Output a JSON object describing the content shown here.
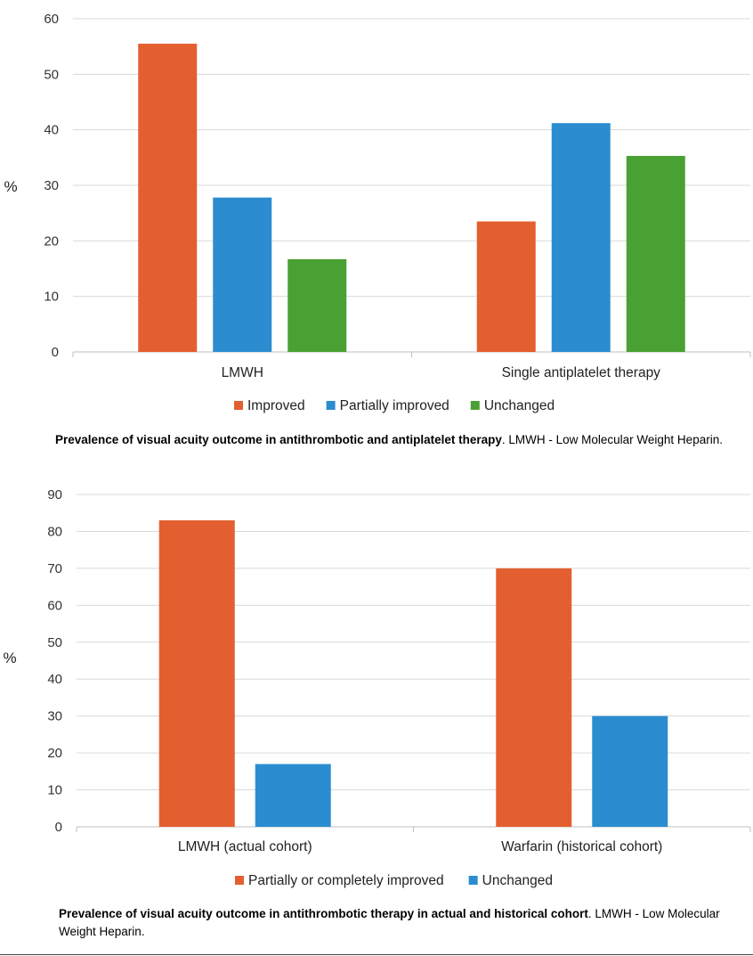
{
  "chart_data": [
    {
      "type": "bar",
      "categories": [
        "LMWH",
        "Single antiplatelet therapy"
      ],
      "series": [
        {
          "name": "Improved",
          "values": [
            55.5,
            23.5
          ],
          "color": "#E35F30"
        },
        {
          "name": "Partially improved",
          "values": [
            27.8,
            41.2
          ],
          "color": "#2B8DD0"
        },
        {
          "name": "Unchanged",
          "values": [
            16.7,
            35.3
          ],
          "color": "#4AA133"
        }
      ],
      "ylabel": "%",
      "ylim": [
        0,
        60
      ],
      "yticks": [
        0,
        10,
        20,
        30,
        40,
        50,
        60
      ],
      "grid": true,
      "legend_position": "bottom",
      "caption_bold": "Prevalence of visual acuity outcome in antithrombotic and antiplatelet therapy",
      "caption_rest": ". LMWH - Low Molecular Weight Heparin."
    },
    {
      "type": "bar",
      "categories": [
        "LMWH (actual cohort)",
        "Warfarin (historical cohort)"
      ],
      "series": [
        {
          "name": "Partially or completely improved",
          "values": [
            83,
            70
          ],
          "color": "#E35F30"
        },
        {
          "name": "Unchanged",
          "values": [
            17,
            30
          ],
          "color": "#2B8DD0"
        }
      ],
      "ylabel": "%",
      "ylim": [
        0,
        90
      ],
      "yticks": [
        0,
        10,
        20,
        30,
        40,
        50,
        60,
        70,
        80,
        90
      ],
      "grid": true,
      "legend_position": "bottom",
      "caption_bold": "Prevalence of visual acuity outcome in antithrombotic therapy in actual and historical cohort",
      "caption_rest": ". LMWH - Low Molecular Weight Heparin."
    }
  ]
}
